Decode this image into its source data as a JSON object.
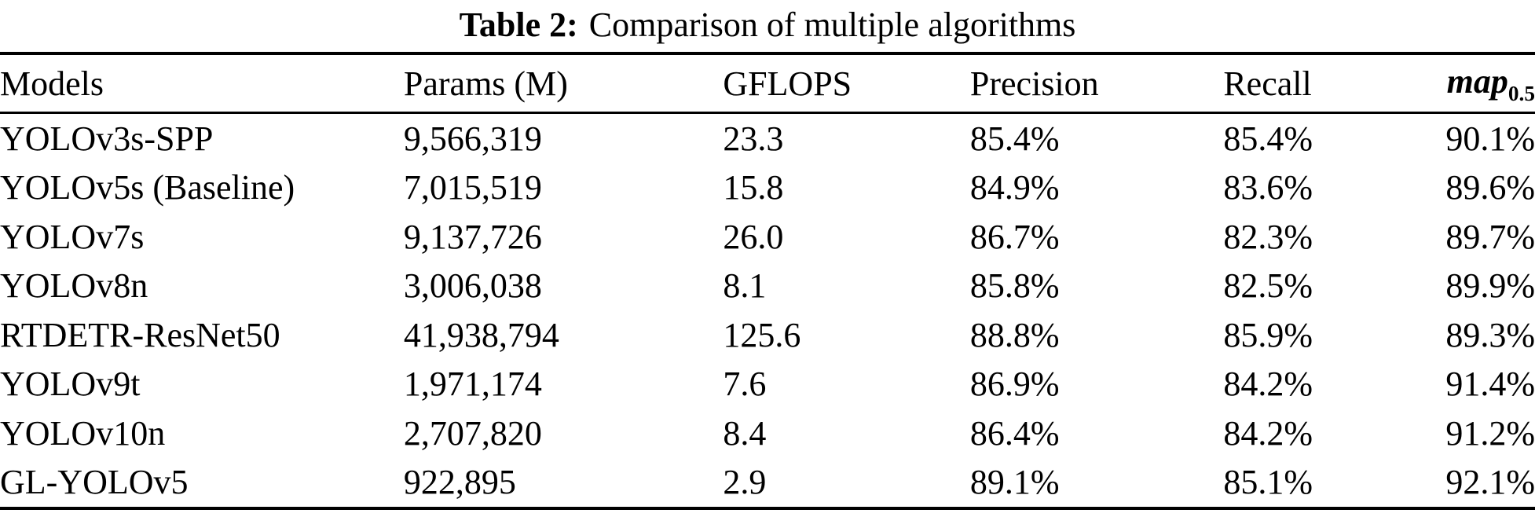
{
  "caption": {
    "label": "Table 2:",
    "text": "Comparison of multiple algorithms"
  },
  "table": {
    "text_color": "#000000",
    "background_color": "#ffffff",
    "headers": [
      {
        "label": "Models"
      },
      {
        "label": "Params (M)"
      },
      {
        "label": "GFLOPS"
      },
      {
        "label": "Precision"
      },
      {
        "label": "Recall"
      },
      {
        "label": "map",
        "subscript": "0.5"
      }
    ],
    "rows": [
      {
        "model": "YOLOv3s-SPP",
        "params": "9,566,319",
        "gflops": "23.3",
        "precision": "85.4%",
        "recall": "85.4%",
        "map": "90.1%"
      },
      {
        "model": "YOLOv5s (Baseline)",
        "params": "7,015,519",
        "gflops": "15.8",
        "precision": "84.9%",
        "recall": "83.6%",
        "map": "89.6%"
      },
      {
        "model": "YOLOv7s",
        "params": "9,137,726",
        "gflops": "26.0",
        "precision": "86.7%",
        "recall": "82.3%",
        "map": "89.7%"
      },
      {
        "model": "YOLOv8n",
        "params": "3,006,038",
        "gflops": "8.1",
        "precision": "85.8%",
        "recall": "82.5%",
        "map": "89.9%"
      },
      {
        "model": "RTDETR-ResNet50",
        "params": "41,938,794",
        "gflops": "125.6",
        "precision": "88.8%",
        "recall": "85.9%",
        "map": "89.3%"
      },
      {
        "model": "YOLOv9t",
        "params": "1,971,174",
        "gflops": "7.6",
        "precision": "86.9%",
        "recall": "84.2%",
        "map": "91.4%"
      },
      {
        "model": "YOLOv10n",
        "params": "2,707,820",
        "gflops": "8.4",
        "precision": "86.4%",
        "recall": "84.2%",
        "map": "91.2%"
      },
      {
        "model": "GL-YOLOv5",
        "params": "922,895",
        "gflops": "2.9",
        "precision": "89.1%",
        "recall": "85.1%",
        "map": "92.1%"
      }
    ]
  }
}
